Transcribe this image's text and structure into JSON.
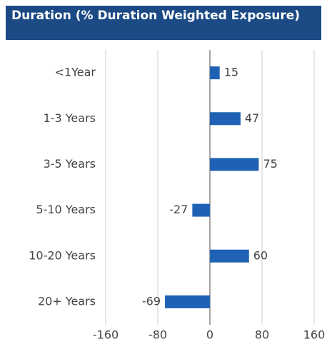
{
  "chart_data": {
    "type": "bar",
    "orientation": "horizontal",
    "title": "Duration (% Duration Weighted Exposure)",
    "categories": [
      "<1Year",
      "1-3 Years",
      "3-5 Years",
      "5-10 Years",
      "10-20 Years",
      "20+ Years"
    ],
    "values": [
      15,
      47,
      75,
      -27,
      60,
      -69
    ],
    "color": "#1f62b5",
    "xlim": [
      -160,
      160
    ],
    "xticks": [
      -160,
      -80,
      0,
      80,
      160
    ],
    "grid": true
  }
}
